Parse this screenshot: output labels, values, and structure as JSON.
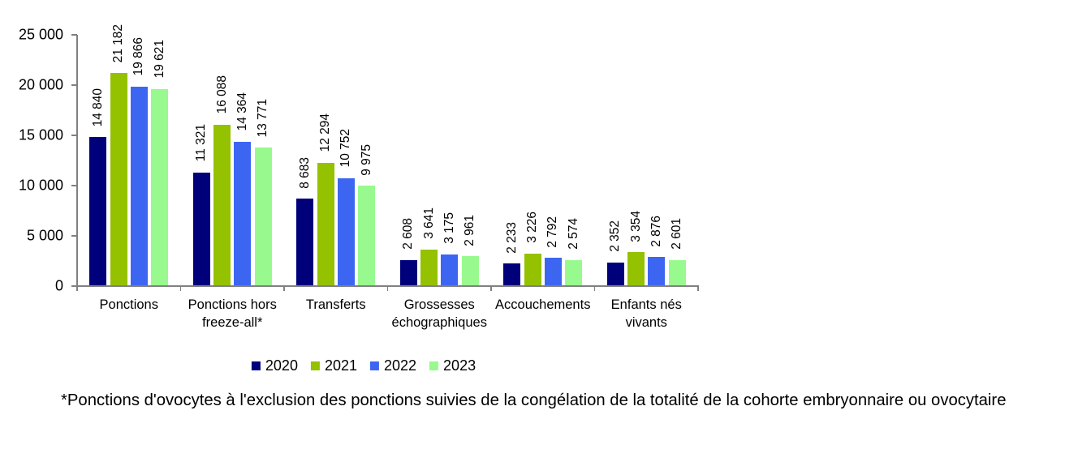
{
  "chart_data": {
    "type": "bar",
    "categories": [
      "Ponctions",
      "Ponctions hors freeze-all*",
      "Transferts",
      "Grossesses échographiques",
      "Accouchements",
      "Enfants nés vivants"
    ],
    "category_label_lines": [
      [
        "Ponctions"
      ],
      [
        "Ponctions hors",
        "freeze-all*"
      ],
      [
        "Transferts"
      ],
      [
        "Grossesses",
        "échographiques"
      ],
      [
        "Accouchements"
      ],
      [
        "Enfants nés",
        "vivants"
      ]
    ],
    "series": [
      {
        "name": "2020",
        "color": "#00007a",
        "values": [
          14840,
          11321,
          8683,
          2608,
          2233,
          2352
        ]
      },
      {
        "name": "2021",
        "color": "#94c100",
        "values": [
          21182,
          16088,
          12294,
          3641,
          3226,
          3354
        ]
      },
      {
        "name": "2022",
        "color": "#3c66f2",
        "values": [
          19866,
          14364,
          10752,
          3175,
          2792,
          2876
        ]
      },
      {
        "name": "2023",
        "color": "#98fa8e",
        "values": [
          19621,
          13771,
          9975,
          2961,
          2574,
          2601
        ]
      }
    ],
    "value_labels": {
      "2020": [
        "14 840",
        "11 321",
        "8 683",
        "2 608",
        "2 233",
        "2 352"
      ],
      "2021": [
        "21 182",
        "16 088",
        "12 294",
        "3 641",
        "3 226",
        "3 354"
      ],
      "2022": [
        "19 866",
        "14 364",
        "10 752",
        "3 175",
        "2 792",
        "2 876"
      ],
      "2023": [
        "19 621",
        "13 771",
        "9 975",
        "2 961",
        "2 574",
        "2 601"
      ]
    },
    "yaxis": {
      "min": 0,
      "max": 25000,
      "tick_interval": 5000,
      "tick_labels": [
        "0",
        "5 000",
        "10 000",
        "15 000",
        "20 000",
        "25 000"
      ]
    },
    "legend_position": "bottom",
    "grid": false,
    "title": "",
    "xlabel": "",
    "ylabel": ""
  },
  "legend": {
    "entries": [
      "2020",
      "2021",
      "2022",
      "2023"
    ]
  },
  "footnote": {
    "text": "*Ponctions d'ovocytes à l'exclusion des ponctions suivies de la congélation de la totalité de la cohorte embryonnaire ou ovocytaire"
  },
  "colors": {
    "axis": "#808080",
    "text": "#000000",
    "background": "#ffffff",
    "series_2020": "#00007a",
    "series_2021": "#94c100",
    "series_2022": "#3c66f2",
    "series_2023": "#98fa8e"
  }
}
